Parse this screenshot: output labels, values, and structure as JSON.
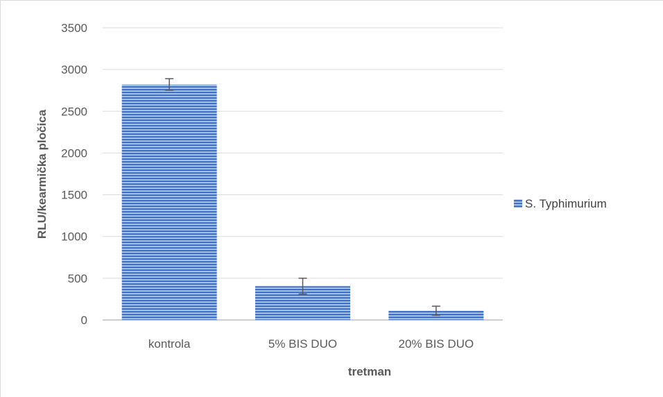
{
  "chart_data": {
    "type": "bar",
    "categories": [
      "kontrola",
      "5% BIS DUO",
      "20% BIS DUO"
    ],
    "series": [
      {
        "name": "S. Typhimurium",
        "values": [
          2820,
          405,
          110
        ],
        "errors": [
          70,
          95,
          55
        ]
      }
    ],
    "xlabel": "tretman",
    "ylabel": "RLU/kearmička pločica",
    "ylim": [
      0,
      3500
    ],
    "yticks": [
      0,
      500,
      1000,
      1500,
      2000,
      2500,
      3000,
      3500
    ],
    "grid": true,
    "legend_position": "right",
    "colors": {
      "bar_fill": "#4472c4",
      "bar_stripe": "#dce6f4",
      "gridline": "#d9d9d9",
      "axis": "#bfbfbf",
      "error_bar": "#595959"
    }
  }
}
